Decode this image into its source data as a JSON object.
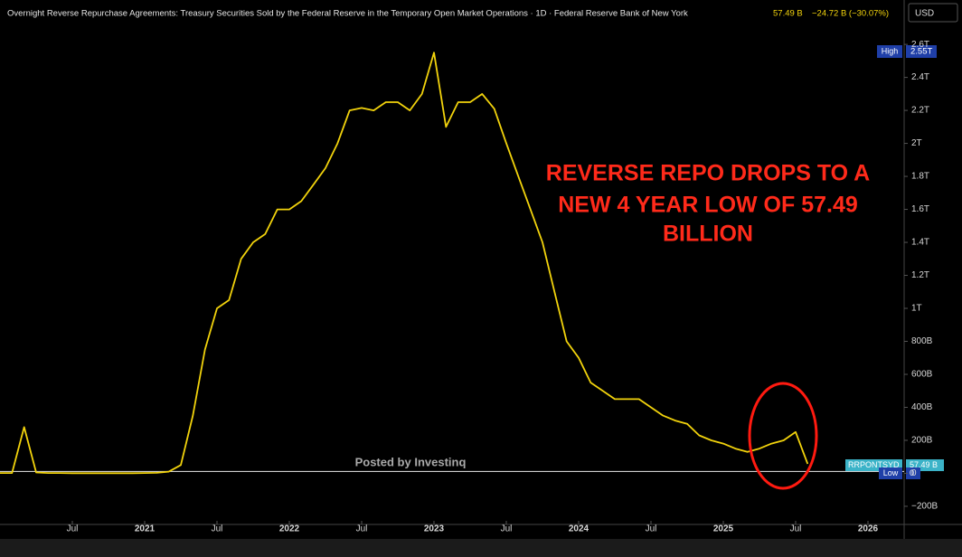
{
  "chart_data": {
    "type": "line",
    "title": "Overnight Reverse Repurchase Agreements: Treasury Securities Sold by the Federal Reserve in the Temporary Open Market Operations · 1D · Federal Reserve Bank of New York",
    "last_value": "57.49 B",
    "change": "−24.72 B (−30.07%)",
    "currency": "USD",
    "annotation": [
      "REVERSE REPO DROPS TO A",
      "NEW 4 YEAR LOW OF 57.49",
      "BILLION"
    ],
    "watermark": "Posted by Investinq",
    "high_label": "High",
    "high_value": "2.55T",
    "low_label": "Low",
    "low_value": "0",
    "series_label": "RRPONTSYD",
    "series_value": "57.49 B",
    "x": [
      "2020-01",
      "2020-02",
      "2020-03",
      "2020-04",
      "2020-05",
      "2020-06",
      "2020-07",
      "2020-08",
      "2020-09",
      "2020-10",
      "2020-11",
      "2020-12",
      "2021-01",
      "2021-02",
      "2021-03",
      "2021-04",
      "2021-05",
      "2021-06",
      "2021-07",
      "2021-08",
      "2021-09",
      "2021-10",
      "2021-11",
      "2021-12",
      "2022-01",
      "2022-02",
      "2022-03",
      "2022-04",
      "2022-05",
      "2022-06",
      "2022-07",
      "2022-08",
      "2022-09",
      "2022-10",
      "2022-11",
      "2022-12",
      "2023-01",
      "2023-02",
      "2023-03",
      "2023-04",
      "2023-05",
      "2023-06",
      "2023-07",
      "2023-08",
      "2023-09",
      "2023-10",
      "2023-11",
      "2023-12",
      "2024-01",
      "2024-02",
      "2024-03",
      "2024-04",
      "2024-05",
      "2024-06",
      "2024-07",
      "2024-08",
      "2024-09",
      "2024-10",
      "2024-11",
      "2024-12",
      "2025-01",
      "2025-02",
      "2025-03",
      "2025-04",
      "2025-05",
      "2025-06",
      "2025-07",
      "2025-08"
    ],
    "series": [
      {
        "name": "RRPONTSYD",
        "color": "#f2d30c",
        "values": [
          2,
          2,
          280,
          5,
          2,
          2,
          1,
          1,
          1,
          1,
          1,
          1,
          2,
          3,
          10,
          50,
          350,
          750,
          1000,
          1050,
          1300,
          1400,
          1450,
          1600,
          1600,
          1650,
          1750,
          1850,
          2000,
          2200,
          2215,
          2200,
          2250,
          2250,
          2200,
          2300,
          2550,
          2100,
          2250,
          2250,
          2300,
          2210,
          2000,
          1800,
          1600,
          1400,
          1100,
          800,
          700,
          550,
          500,
          450,
          450,
          450,
          400,
          350,
          320,
          300,
          230,
          200,
          180,
          150,
          130,
          150,
          180,
          200,
          250,
          57.49
        ]
      }
    ],
    "xlim": [
      "2020-01",
      "2026-04"
    ],
    "xticks": [
      {
        "value": "2020-07",
        "label": "Jul"
      },
      {
        "value": "2021-01",
        "label": "2021"
      },
      {
        "value": "2021-07",
        "label": "Jul"
      },
      {
        "value": "2022-01",
        "label": "2022"
      },
      {
        "value": "2022-07",
        "label": "Jul"
      },
      {
        "value": "2023-01",
        "label": "2023"
      },
      {
        "value": "2023-07",
        "label": "Jul"
      },
      {
        "value": "2024-01",
        "label": "2024"
      },
      {
        "value": "2024-07",
        "label": "Jul"
      },
      {
        "value": "2025-01",
        "label": "2025"
      },
      {
        "value": "2025-07",
        "label": "Jul"
      },
      {
        "value": "2026-01",
        "label": "2026"
      }
    ],
    "ylim": [
      -310,
      2650
    ],
    "yticks": [
      {
        "value": 2600,
        "label": "2.6T"
      },
      {
        "value": 2400,
        "label": "2.4T"
      },
      {
        "value": 2200,
        "label": "2.2T"
      },
      {
        "value": 2000,
        "label": "2T"
      },
      {
        "value": 1800,
        "label": "1.8T"
      },
      {
        "value": 1600,
        "label": "1.6T"
      },
      {
        "value": 1400,
        "label": "1.4T"
      },
      {
        "value": 1200,
        "label": "1.2T"
      },
      {
        "value": 1000,
        "label": "1T"
      },
      {
        "value": 800,
        "label": "800B"
      },
      {
        "value": 600,
        "label": "600B"
      },
      {
        "value": 400,
        "label": "400B"
      },
      {
        "value": 200,
        "label": "200B"
      },
      0,
      {
        "value": -200,
        "label": "−200B"
      }
    ],
    "grid": false
  }
}
